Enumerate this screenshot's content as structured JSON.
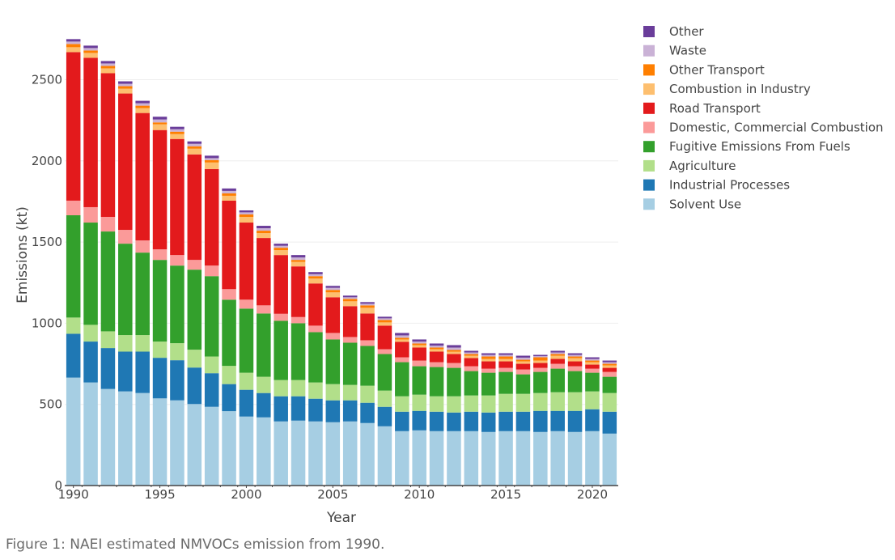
{
  "caption": "Figure 1: NAEI estimated NMVOCs emission from 1990.",
  "chart_data": {
    "type": "bar",
    "stacked": true,
    "title": "",
    "xlabel": "Year",
    "ylabel": "Emissions (kt)",
    "ylim": [
      0,
      2800
    ],
    "yticks": [
      0,
      500,
      1000,
      1500,
      2000,
      2500
    ],
    "xticks": [
      1990,
      1995,
      2000,
      2005,
      2010,
      2015,
      2020
    ],
    "grid": true,
    "legend_position": "right",
    "categories": [
      1990,
      1991,
      1992,
      1993,
      1994,
      1995,
      1996,
      1997,
      1998,
      1999,
      2000,
      2001,
      2002,
      2003,
      2004,
      2005,
      2006,
      2007,
      2008,
      2009,
      2010,
      2011,
      2012,
      2013,
      2014,
      2015,
      2016,
      2017,
      2018,
      2019,
      2020,
      2021
    ],
    "series": [
      {
        "name": "Solvent Use",
        "color": "#a6cee3",
        "values": [
          665,
          635,
          595,
          580,
          570,
          537,
          525,
          502,
          485,
          458,
          425,
          420,
          395,
          400,
          395,
          390,
          395,
          385,
          365,
          335,
          340,
          335,
          335,
          335,
          330,
          335,
          335,
          330,
          335,
          330,
          335,
          320
        ]
      },
      {
        "name": "Industrial Processes",
        "color": "#1f78b4",
        "values": [
          270,
          252,
          252,
          245,
          255,
          250,
          247,
          225,
          207,
          167,
          165,
          150,
          155,
          150,
          140,
          135,
          130,
          125,
          120,
          120,
          120,
          120,
          115,
          120,
          120,
          120,
          120,
          130,
          125,
          130,
          135,
          135
        ]
      },
      {
        "name": "Agriculture",
        "color": "#b2df8a",
        "values": [
          100,
          103,
          103,
          102,
          102,
          100,
          105,
          110,
          103,
          112,
          105,
          100,
          100,
          100,
          100,
          100,
          95,
          105,
          100,
          95,
          100,
          95,
          100,
          100,
          105,
          110,
          110,
          110,
          115,
          115,
          110,
          115
        ]
      },
      {
        "name": "Fugitive Emissions From Fuels",
        "color": "#33a02c",
        "values": [
          630,
          630,
          615,
          563,
          508,
          503,
          478,
          493,
          495,
          408,
          395,
          390,
          365,
          350,
          310,
          275,
          260,
          245,
          225,
          210,
          175,
          180,
          175,
          150,
          140,
          135,
          120,
          130,
          145,
          130,
          115,
          100
        ]
      },
      {
        "name": "Domestic, Commercial Combustion",
        "color": "#fb9a99",
        "values": [
          90,
          95,
          90,
          85,
          75,
          65,
          65,
          60,
          65,
          65,
          55,
          50,
          43,
          38,
          40,
          40,
          35,
          35,
          30,
          30,
          35,
          30,
          30,
          30,
          25,
          25,
          30,
          25,
          30,
          30,
          25,
          30
        ]
      },
      {
        "name": "Road Transport",
        "color": "#e31a1c",
        "values": [
          915,
          920,
          885,
          840,
          785,
          735,
          715,
          650,
          595,
          545,
          475,
          415,
          362,
          312,
          260,
          220,
          190,
          165,
          145,
          95,
          80,
          65,
          55,
          50,
          45,
          40,
          35,
          30,
          30,
          30,
          25,
          25
        ]
      },
      {
        "name": "Combustion in Industry",
        "color": "#fdbf6f",
        "values": [
          30,
          30,
          30,
          30,
          30,
          35,
          30,
          35,
          40,
          30,
          35,
          30,
          30,
          28,
          30,
          30,
          30,
          35,
          20,
          15,
          15,
          15,
          15,
          15,
          15,
          15,
          15,
          15,
          20,
          20,
          15,
          15
        ]
      },
      {
        "name": "Other Transport",
        "color": "#ff7f00",
        "values": [
          20,
          15,
          15,
          15,
          15,
          12,
          15,
          15,
          15,
          15,
          15,
          15,
          15,
          12,
          15,
          15,
          15,
          15,
          15,
          10,
          10,
          10,
          10,
          10,
          15,
          15,
          10,
          20,
          10,
          10,
          10,
          10
        ]
      },
      {
        "name": "Waste",
        "color": "#cab2d6",
        "values": [
          15,
          15,
          15,
          15,
          15,
          18,
          15,
          15,
          12,
          15,
          13,
          15,
          12,
          15,
          12,
          13,
          10,
          10,
          10,
          15,
          12,
          12,
          15,
          10,
          10,
          10,
          13,
          7,
          10,
          10,
          10,
          10
        ]
      },
      {
        "name": "Other",
        "color": "#6a3d9a",
        "values": [
          15,
          15,
          15,
          15,
          15,
          17,
          15,
          15,
          15,
          15,
          12,
          15,
          13,
          15,
          13,
          12,
          10,
          10,
          10,
          15,
          13,
          13,
          15,
          10,
          10,
          10,
          12,
          8,
          10,
          10,
          10,
          10
        ]
      }
    ],
    "legend_order": [
      "Other",
      "Waste",
      "Other Transport",
      "Combustion in Industry",
      "Road Transport",
      "Domestic, Commercial Combustion",
      "Fugitive Emissions From Fuels",
      "Agriculture",
      "Industrial Processes",
      "Solvent Use"
    ]
  }
}
